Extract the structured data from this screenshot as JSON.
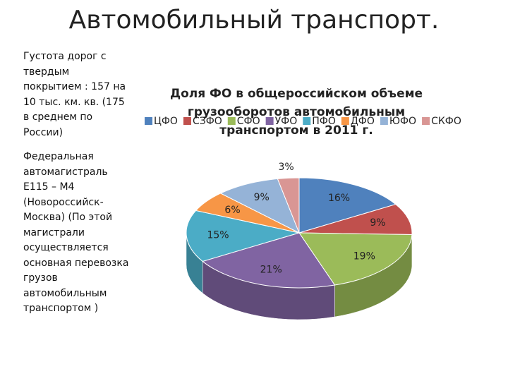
{
  "header": {
    "title": "Автомобильный транспорт."
  },
  "notes": [
    "Густота дорог с твердым покрытием : 157 на 10 тыс. км. кв. (175 в среднем по России)",
    "Федеральная автомагистраль Е115 – М4 (Новороссийск-Москва) (По этой магистрали осуществляется основная перевозка грузов автомобильным транспортом )"
  ],
  "chart_data": {
    "type": "pie",
    "title": "Доля ФО в общероссийском объеме грузооборотов автомобильным транспортом в 2011 г.",
    "categories": [
      "ЦФО",
      "СЗФО",
      "СФО",
      "УФО",
      "ПФО",
      "ДФО",
      "ЮФО",
      "СКФО"
    ],
    "values": [
      16,
      9,
      19,
      21,
      15,
      6,
      9,
      3
    ],
    "value_labels": [
      "16%",
      "9%",
      "19%",
      "21%",
      "15%",
      "6%",
      "9%",
      "3%"
    ],
    "colors": [
      "#4f81bd",
      "#c0504d",
      "#9bbb59",
      "#8064a2",
      "#4bacc6",
      "#f79646",
      "#95b3d7",
      "#d99694"
    ],
    "legend": "top"
  }
}
